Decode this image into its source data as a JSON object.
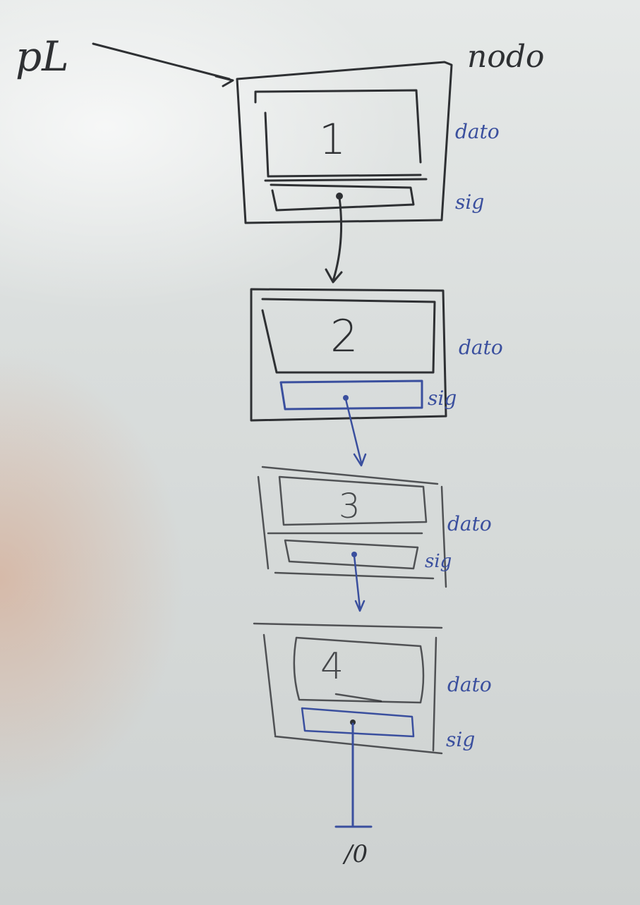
{
  "pointer_label": "pL",
  "node_label": "nodo",
  "nodes": [
    {
      "value": "1",
      "data_label": "dato",
      "next_label": "sig"
    },
    {
      "value": "2",
      "data_label": "dato",
      "next_label": "sig"
    },
    {
      "value": "3",
      "data_label": "dato",
      "next_label": "sig"
    },
    {
      "value": "4",
      "data_label": "dato",
      "next_label": "sig"
    }
  ],
  "terminator_label": "/0",
  "colors": {
    "black_marker": "#2e3033",
    "blue_marker": "#3a4f9e",
    "board": "#dadedd"
  }
}
